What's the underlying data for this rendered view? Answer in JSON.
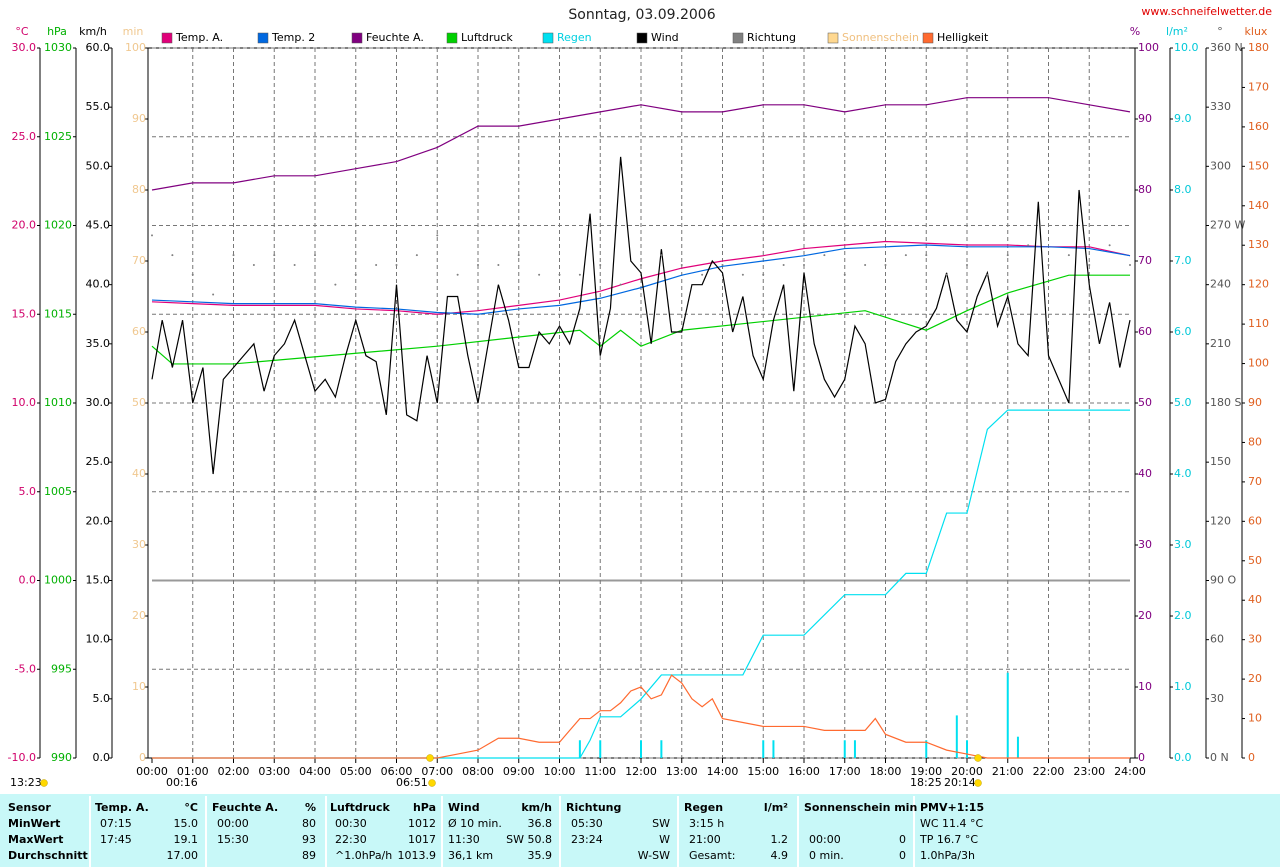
{
  "chart_data": {
    "type": "line",
    "title": "Sonntag, 03.09.2006",
    "source": "www.schneifelwetter.de",
    "xlim": [
      0,
      24
    ],
    "xticks": [
      {
        "value": 0,
        "label": "00:00"
      },
      {
        "value": 1,
        "label": "01:00"
      },
      {
        "value": 2,
        "label": "02:00"
      },
      {
        "value": 3,
        "label": "03:00"
      },
      {
        "value": 4,
        "label": "04:00"
      },
      {
        "value": 5,
        "label": "05:00"
      },
      {
        "value": 6,
        "label": "06:00"
      },
      {
        "value": 7,
        "label": "07:00"
      },
      {
        "value": 8,
        "label": "08:00"
      },
      {
        "value": 9,
        "label": "09:00"
      },
      {
        "value": 10,
        "label": "10:00"
      },
      {
        "value": 11,
        "label": "11:00"
      },
      {
        "value": 12,
        "label": "12:00"
      },
      {
        "value": 13,
        "label": "13:00"
      },
      {
        "value": 14,
        "label": "14:00"
      },
      {
        "value": 15,
        "label": "15:00"
      },
      {
        "value": 16,
        "label": "16:00"
      },
      {
        "value": 17,
        "label": "17:00"
      },
      {
        "value": 18,
        "label": "18:00"
      },
      {
        "value": 19,
        "label": "19:00"
      },
      {
        "value": 20,
        "label": "20:00"
      },
      {
        "value": 21,
        "label": "21:00"
      },
      {
        "value": 22,
        "label": "22:00"
      },
      {
        "value": 23,
        "label": "23:00"
      },
      {
        "value": 24,
        "label": "24:00"
      }
    ],
    "grid": true,
    "axes": [
      {
        "unit": "°C",
        "side": "left",
        "color": "#d0006a",
        "lim": [
          -10,
          30
        ],
        "ticks": [
          {
            "value": -10,
            "label": "-10.0"
          },
          {
            "value": -5,
            "label": "-5.0"
          },
          {
            "value": 0,
            "label": "0.0"
          },
          {
            "value": 5,
            "label": "5.0"
          },
          {
            "value": 10,
            "label": "10.0"
          },
          {
            "value": 15,
            "label": "15.0"
          },
          {
            "value": 20,
            "label": "20.0"
          },
          {
            "value": 25,
            "label": "25.0"
          },
          {
            "value": 30,
            "label": "30.0"
          }
        ]
      },
      {
        "unit": "hPa",
        "side": "left",
        "color": "#00b000",
        "lim": [
          990,
          1030
        ],
        "ticks": [
          990,
          995,
          1000,
          1005,
          1010,
          1015,
          1020,
          1025,
          1030
        ]
      },
      {
        "unit": "km/h",
        "side": "left",
        "color": "#000000",
        "lim": [
          0,
          60
        ],
        "ticks": [
          {
            "value": 0,
            "label": "0.0"
          },
          {
            "value": 5,
            "label": "5.0"
          },
          {
            "value": 10,
            "label": "10.0"
          },
          {
            "value": 15,
            "label": "15.0"
          },
          {
            "value": 20,
            "label": "20.0"
          },
          {
            "value": 25,
            "label": "25.0"
          },
          {
            "value": 30,
            "label": "30.0"
          },
          {
            "value": 35,
            "label": "35.0"
          },
          {
            "value": 40,
            "label": "40.0"
          },
          {
            "value": 45,
            "label": "45.0"
          },
          {
            "value": 50,
            "label": "50.0"
          },
          {
            "value": 55,
            "label": "55.0"
          },
          {
            "value": 60,
            "label": "60.0"
          }
        ]
      },
      {
        "unit": "min",
        "side": "left",
        "color": "#f0c890",
        "lim": [
          0,
          100
        ],
        "ticks": [
          0,
          10,
          20,
          30,
          40,
          50,
          60,
          70,
          80,
          90,
          100
        ]
      },
      {
        "unit": "%",
        "side": "right",
        "color": "#800080",
        "lim": [
          0,
          100
        ],
        "ticks": [
          0,
          10,
          20,
          30,
          40,
          50,
          60,
          70,
          80,
          90,
          100
        ]
      },
      {
        "unit": "l/m²",
        "side": "right",
        "color": "#00c8d8",
        "lim": [
          0,
          10
        ],
        "ticks": [
          {
            "value": 0,
            "label": "0.0"
          },
          {
            "value": 1,
            "label": "1.0"
          },
          {
            "value": 2,
            "label": "2.0"
          },
          {
            "value": 3,
            "label": "3.0"
          },
          {
            "value": 4,
            "label": "4.0"
          },
          {
            "value": 5,
            "label": "5.0"
          },
          {
            "value": 6,
            "label": "6.0"
          },
          {
            "value": 7,
            "label": "7.0"
          },
          {
            "value": 8,
            "label": "8.0"
          },
          {
            "value": 9,
            "label": "9.0"
          },
          {
            "value": 10,
            "label": "10.0"
          }
        ]
      },
      {
        "unit": "°",
        "side": "right",
        "color": "#555555",
        "lim": [
          0,
          360
        ],
        "ticks": [
          {
            "value": 0,
            "label": "0 N"
          },
          30,
          60,
          {
            "value": 90,
            "label": "90 O"
          },
          120,
          150,
          {
            "value": 180,
            "label": "180 S"
          },
          210,
          240,
          {
            "value": 270,
            "label": "270 W"
          },
          300,
          330,
          {
            "value": 360,
            "label": "360 N"
          }
        ]
      },
      {
        "unit": "klux",
        "side": "right",
        "color": "#e06020",
        "lim": [
          0,
          180
        ],
        "ticks": [
          0,
          10,
          20,
          30,
          40,
          50,
          60,
          70,
          80,
          90,
          100,
          110,
          120,
          130,
          140,
          150,
          160,
          170,
          180
        ]
      }
    ],
    "series": [
      {
        "name": "Temp. A.",
        "color": "#e0007a",
        "axis": 0,
        "x": [
          0,
          1,
          2,
          3,
          4,
          5,
          6,
          7,
          8,
          9,
          10,
          11,
          12,
          13,
          14,
          15,
          16,
          17,
          18,
          19,
          20,
          21,
          22,
          23,
          24
        ],
        "values": [
          15.7,
          15.6,
          15.5,
          15.5,
          15.5,
          15.3,
          15.2,
          15.0,
          15.2,
          15.5,
          15.8,
          16.3,
          17.0,
          17.6,
          18.0,
          18.3,
          18.7,
          18.9,
          19.1,
          19.0,
          18.9,
          18.9,
          18.8,
          18.8,
          18.3
        ]
      },
      {
        "name": "Temp. 2",
        "color": "#0068e0",
        "axis": 0,
        "x": [
          0,
          1,
          2,
          3,
          4,
          5,
          6,
          7,
          8,
          9,
          10,
          11,
          12,
          13,
          14,
          15,
          16,
          17,
          18,
          19,
          20,
          21,
          22,
          23,
          24
        ],
        "values": [
          15.8,
          15.7,
          15.6,
          15.6,
          15.6,
          15.4,
          15.3,
          15.1,
          15.0,
          15.3,
          15.5,
          15.9,
          16.5,
          17.2,
          17.7,
          18.0,
          18.3,
          18.7,
          18.8,
          18.9,
          18.8,
          18.8,
          18.8,
          18.7,
          18.3
        ]
      },
      {
        "name": "Feuchte A.",
        "color": "#800080",
        "axis": 4,
        "x": [
          0,
          1,
          2,
          3,
          4,
          5,
          6,
          7,
          8,
          9,
          10,
          11,
          12,
          13,
          14,
          15,
          16,
          17,
          18,
          19,
          20,
          21,
          22,
          23,
          24
        ],
        "values": [
          80,
          81,
          81,
          82,
          82,
          83,
          84,
          86,
          89,
          89,
          90,
          91,
          92,
          91,
          91,
          92,
          92,
          91,
          92,
          92,
          93,
          93,
          93,
          92,
          91
        ]
      },
      {
        "name": "Luftdruck",
        "color": "#00d000",
        "axis": 1,
        "x": [
          0,
          0.5,
          2,
          7,
          10.5,
          11,
          11.5,
          12,
          13,
          17.5,
          19,
          20,
          21,
          22.5,
          24
        ],
        "values": [
          1013.2,
          1012.2,
          1012.2,
          1013.2,
          1014.1,
          1013.2,
          1014.1,
          1013.2,
          1014.1,
          1015.2,
          1014.1,
          1015.2,
          1016.2,
          1017.2,
          1017.2
        ]
      },
      {
        "name": "Regen",
        "color": "#00e0f0",
        "label_color": "#00d0e0",
        "axis": 5,
        "x": [
          0,
          10.5,
          10.75,
          11,
          11.5,
          12,
          12.5,
          14.5,
          15,
          16,
          17,
          18,
          18.5,
          19,
          19.5,
          20,
          20.5,
          21,
          24
        ],
        "values": [
          0,
          0,
          0.25,
          0.58,
          0.58,
          0.83,
          1.17,
          1.17,
          1.73,
          1.73,
          2.3,
          2.3,
          2.6,
          2.6,
          3.45,
          3.45,
          4.63,
          4.9,
          4.9
        ],
        "bars": {
          "x": [
            10.5,
            11,
            12,
            12.5,
            15,
            15.25,
            17,
            17.25,
            19,
            19.75,
            20,
            21,
            21.25
          ],
          "values": [
            0.25,
            0.25,
            0.25,
            0.25,
            0.25,
            0.25,
            0.25,
            0.25,
            0.25,
            0.6,
            0.25,
            1.2,
            0.3
          ]
        }
      },
      {
        "name": "Wind",
        "color": "#000000",
        "axis": 2,
        "x": [
          0,
          0.25,
          0.5,
          0.75,
          1,
          1.25,
          1.5,
          1.75,
          2,
          2.25,
          2.5,
          2.75,
          3,
          3.25,
          3.5,
          3.75,
          4,
          4.25,
          4.5,
          4.75,
          5,
          5.25,
          5.5,
          5.75,
          6,
          6.25,
          6.5,
          6.75,
          7,
          7.25,
          7.5,
          7.75,
          8,
          8.25,
          8.5,
          8.75,
          9,
          9.25,
          9.5,
          9.75,
          10,
          10.25,
          10.5,
          10.75,
          11,
          11.25,
          11.5,
          11.75,
          12,
          12.25,
          12.5,
          12.75,
          13,
          13.25,
          13.5,
          13.75,
          14,
          14.25,
          14.5,
          14.75,
          15,
          15.25,
          15.5,
          15.75,
          16,
          16.25,
          16.5,
          16.75,
          17,
          17.25,
          17.5,
          17.75,
          18,
          18.25,
          18.5,
          18.75,
          19,
          19.25,
          19.5,
          19.75,
          20,
          20.25,
          20.5,
          20.75,
          21,
          21.25,
          21.5,
          21.75,
          22,
          22.25,
          22.5,
          22.75,
          23,
          23.25,
          23.5,
          23.75,
          24
        ],
        "values": [
          32,
          37,
          33,
          37,
          30,
          33,
          24,
          32,
          33,
          34,
          35,
          31,
          34,
          35,
          37,
          34,
          31,
          32,
          30.5,
          34,
          37,
          34,
          33.5,
          29,
          40,
          29,
          28.5,
          34,
          30,
          39,
          39,
          34,
          30,
          35,
          40,
          37,
          33,
          33,
          36,
          35,
          36.5,
          35,
          38,
          46,
          34,
          38,
          50.8,
          42,
          41,
          35,
          43,
          36,
          36,
          40,
          40,
          42,
          41,
          36,
          39,
          34,
          32,
          37,
          40,
          31,
          41,
          35,
          32,
          30.5,
          32,
          36.5,
          35,
          30,
          30.3,
          33.5,
          35,
          36,
          36.5,
          38,
          41,
          37,
          36,
          39,
          41,
          36.5,
          39,
          35,
          34,
          47,
          34,
          32,
          30,
          48,
          40,
          35,
          38.5,
          33,
          37
        ]
      },
      {
        "name": "Richtung",
        "color": "#808080",
        "axis": 6,
        "style": "dots",
        "x": [
          0,
          0.5,
          1,
          1.5,
          2,
          2.5,
          3,
          3.5,
          4,
          4.5,
          5,
          5.5,
          6,
          6.5,
          7,
          7.5,
          8,
          8.5,
          9,
          9.5,
          10,
          10.5,
          11,
          11.5,
          12,
          12.5,
          13,
          13.5,
          14,
          14.5,
          15,
          15.5,
          16,
          16.5,
          17,
          17.5,
          18,
          18.5,
          19,
          19.5,
          20,
          20.5,
          21,
          21.5,
          22,
          22.5,
          23,
          23.5,
          24
        ],
        "values": [
          265,
          255,
          245,
          235,
          255,
          250,
          255,
          250,
          255,
          240,
          245,
          250,
          250,
          255,
          265,
          245,
          250,
          250,
          255,
          245,
          245,
          245,
          250,
          240,
          250,
          255,
          250,
          245,
          250,
          245,
          245,
          250,
          250,
          255,
          245,
          250,
          250,
          255,
          255,
          245,
          250,
          245,
          255,
          260,
          250,
          255,
          250,
          260,
          250
        ]
      },
      {
        "name": "Sonnenschein",
        "color": "#ffd890",
        "label_color": "#f0c080",
        "axis": 3
      },
      {
        "name": "Helligkeit",
        "color": "#ff6a30",
        "axis": 7,
        "x": [
          0,
          7,
          7.5,
          8,
          8.5,
          9,
          9.5,
          10,
          10.25,
          10.5,
          10.75,
          11,
          11.25,
          11.5,
          11.75,
          12,
          12.25,
          12.5,
          12.75,
          13,
          13.25,
          13.5,
          13.75,
          14,
          14.5,
          15,
          15.5,
          16,
          16.5,
          17,
          17.5,
          17.75,
          18,
          18.5,
          19,
          19.5,
          20,
          20.25,
          20.5,
          24
        ],
        "values": [
          0,
          0,
          1,
          2,
          5,
          5,
          4,
          4,
          7,
          10,
          10,
          12,
          12,
          14,
          17,
          18,
          15,
          16,
          21,
          19,
          15,
          13,
          15,
          10,
          9,
          8,
          8,
          8,
          7,
          7,
          7,
          10,
          6,
          4,
          4,
          2,
          1,
          0.5,
          0,
          0
        ]
      }
    ],
    "annotations": [
      "13:23",
      "00:16",
      "06:51",
      "18:25",
      "20:14"
    ]
  },
  "table": {
    "rows": [
      [
        "Sensor",
        "Temp. A.",
        "°C",
        "Feuchte A.",
        "%",
        "Luftdruck",
        "hPa",
        "Wind",
        "km/h",
        "Richtung",
        null,
        "Regen",
        "l/m²",
        "Sonnenschein min",
        null,
        "PMV+1:15"
      ],
      [
        "MinWert",
        "07:15",
        "15.0",
        "00:00",
        "80",
        "00:30",
        "1012",
        "Ø 10 min.",
        "36.8",
        "05:30",
        "SW",
        "3:15 h",
        null,
        null,
        null,
        "WC 11.4 °C"
      ],
      [
        "MaxWert",
        "17:45",
        "19.1",
        "15:30",
        "93",
        "22:30",
        "1017",
        "11:30",
        "SW 50.8",
        "23:24",
        "W",
        "21:00",
        "1.2",
        "00:00",
        "0",
        "TP 16.7 °C"
      ],
      [
        "Durchschnitt",
        null,
        "17.00",
        null,
        "89",
        "^1.0hPa/h",
        "1013.9",
        "36,1 km",
        "35.9",
        null,
        "W-SW",
        "Gesamt:",
        "4.9",
        "0 min.",
        "0",
        "1.0hPa/3h"
      ]
    ]
  }
}
